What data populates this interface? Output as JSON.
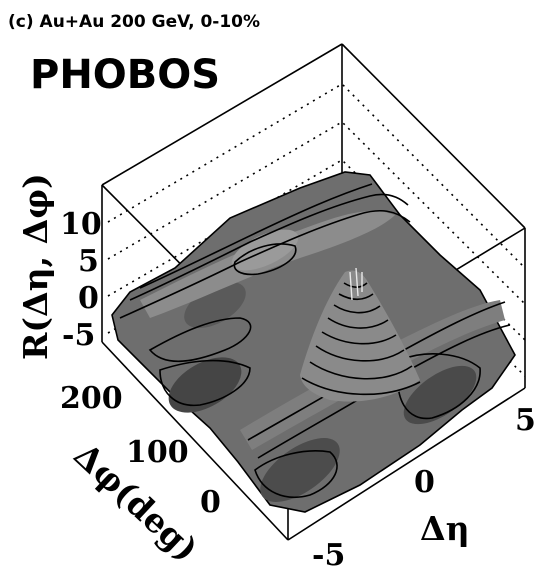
{
  "chart_data": {
    "type": "surface3d",
    "panel_label": "(c) Au+Au 200 GeV, 0-10%",
    "collaboration": "PHOBOS",
    "z_axis": {
      "label": "R(Δη, Δφ)",
      "ticks": [
        "10",
        "5",
        "0",
        "-5"
      ],
      "range": [
        -6,
        13
      ]
    },
    "phi_axis": {
      "label": "Δφ(deg)",
      "ticks": [
        "200",
        "100",
        "0"
      ],
      "range": [
        -60,
        260
      ]
    },
    "eta_axis": {
      "label": "Δη",
      "ticks": [
        "5",
        "0",
        "-5"
      ],
      "range": [
        -6,
        6
      ]
    },
    "features": {
      "near_side_peak": {
        "delta_eta": 0,
        "delta_phi": 0,
        "height": 10
      },
      "away_side_ridge": {
        "delta_phi": 180,
        "height": 5
      },
      "near_side_ridge": {
        "delta_phi": 0,
        "height": 1
      },
      "background_level": -2
    }
  }
}
